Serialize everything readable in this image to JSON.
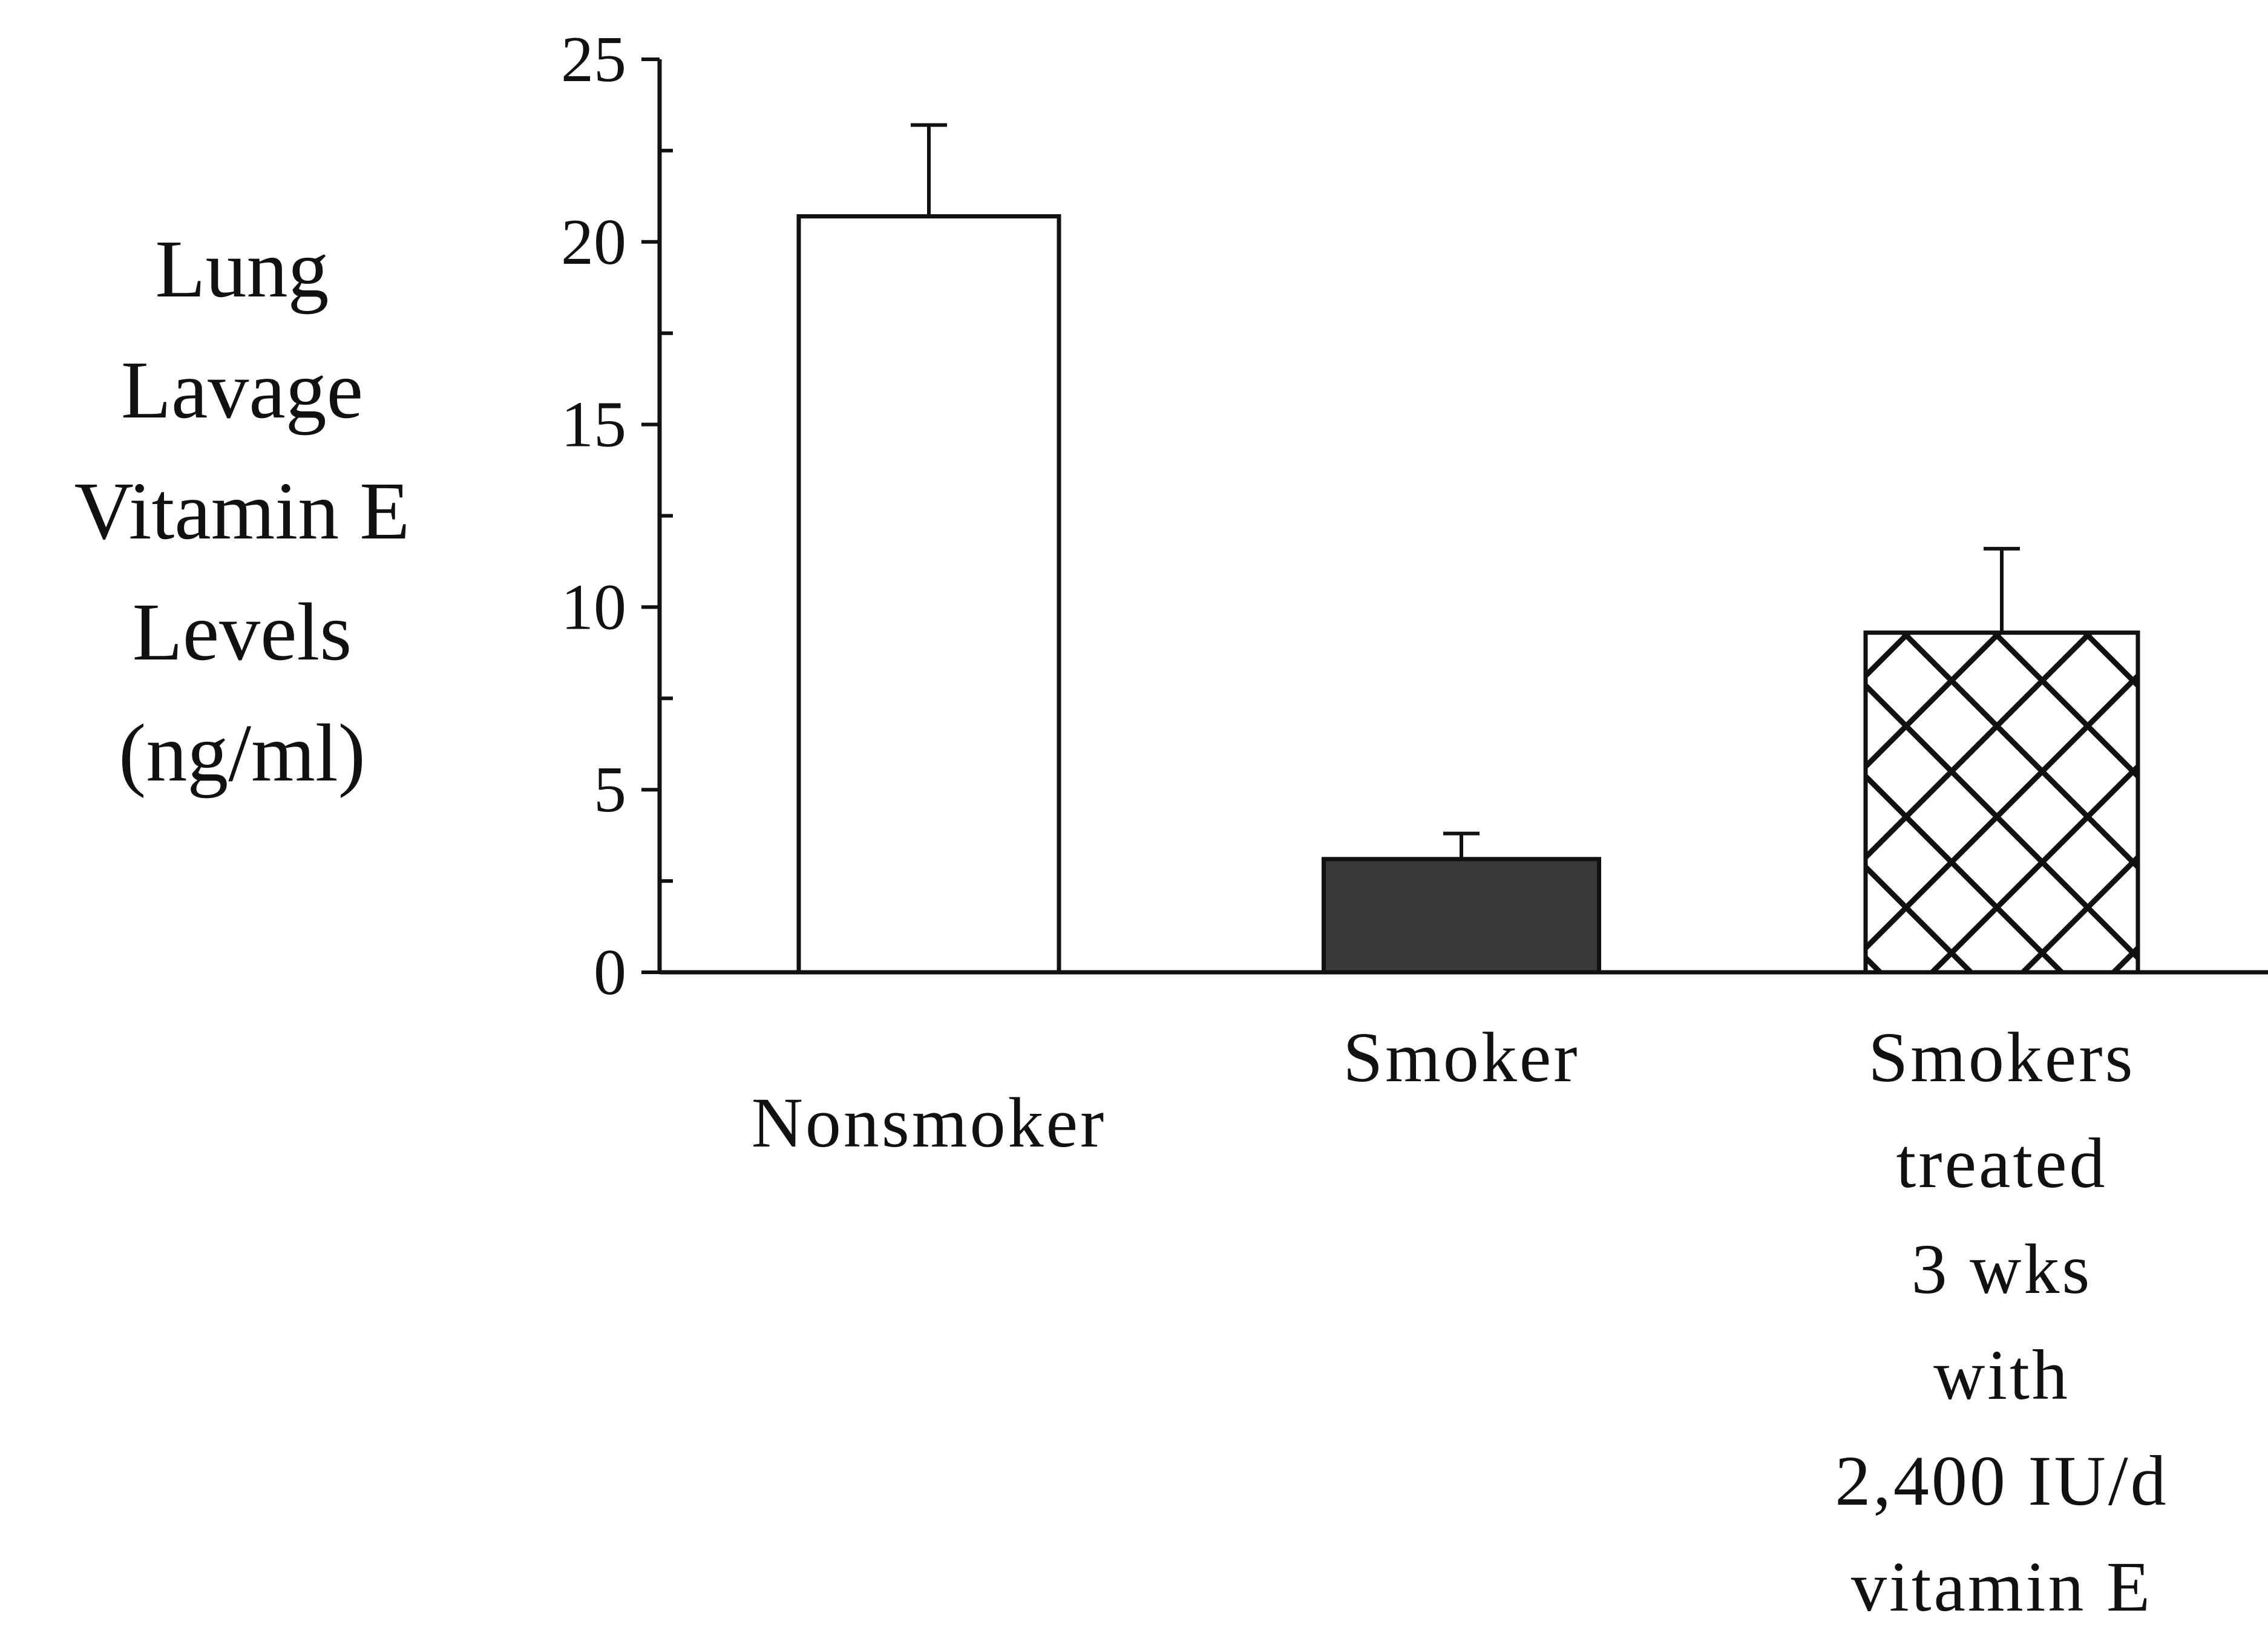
{
  "chart_data": {
    "type": "bar",
    "ylabel_lines": [
      "Lung",
      "Lavage",
      "Vitamin E",
      "Levels",
      "(ng/ml)"
    ],
    "xlabel": "",
    "ylim": [
      0,
      25
    ],
    "yticks": [
      0,
      5,
      10,
      15,
      20,
      25
    ],
    "categories": [
      {
        "lines": [
          "Nonsmoker"
        ]
      },
      {
        "lines": [
          "Smoker"
        ]
      },
      {
        "lines": [
          "Smokers",
          "treated",
          "3 wks",
          "with",
          "2,400 IU/d",
          "vitamin E"
        ]
      }
    ],
    "values": [
      20.7,
      3.1,
      9.3
    ],
    "error_plus": [
      2.5,
      0.7,
      2.3
    ],
    "fills": [
      "open",
      "solid",
      "crosshatch"
    ],
    "colors": {
      "axis": "#111111",
      "solid_fill": "#3a3a3a",
      "open_fill": "#ffffff"
    },
    "grid": false,
    "legend": "none"
  }
}
